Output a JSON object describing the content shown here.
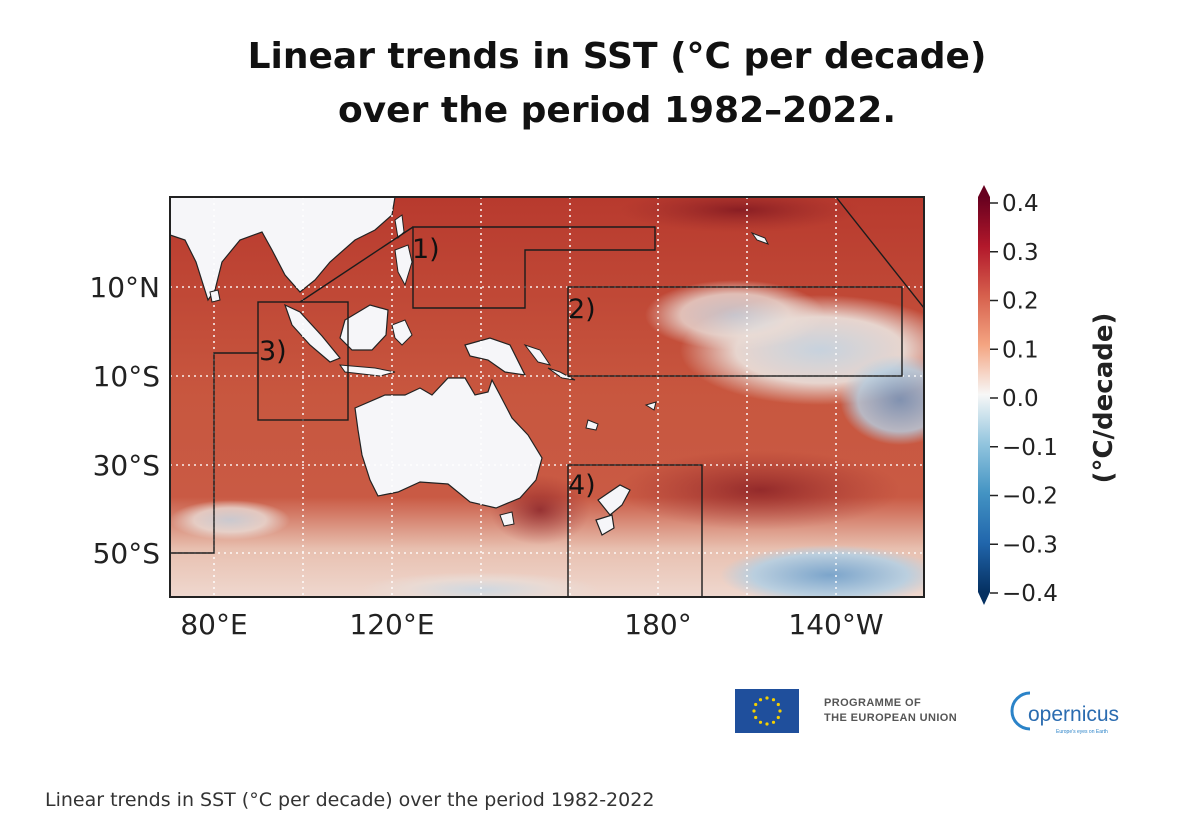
{
  "figure": {
    "title_line1": "Linear trends in SST (°C per decade)",
    "title_line2": "over the period 1982–2022."
  },
  "map": {
    "lat_labels": [
      "10°N",
      "10°S",
      "30°S",
      "50°S"
    ],
    "lon_labels": [
      "80°E",
      "120°E",
      "180°",
      "140°W"
    ],
    "regions": [
      "1)",
      "2)",
      "3)",
      "4)"
    ]
  },
  "colorbar": {
    "label": "(°C/decade)",
    "ticks": [
      "0.4",
      "0.3",
      "0.2",
      "0.1",
      "0.0",
      "−0.1",
      "−0.2",
      "−0.3",
      "−0.4"
    ],
    "colors": [
      "#67001f",
      "#b2182b",
      "#d6604d",
      "#f4a582",
      "#f7f7f7",
      "#92c5de",
      "#4393c3",
      "#2166ac",
      "#053061"
    ]
  },
  "footer": {
    "eu_line1": "PROGRAMME OF",
    "eu_line2": "THE EUROPEAN UNION",
    "copernicus": "opernicus",
    "copernicus_tagline": "Europe's eyes on Earth"
  },
  "caption": "Linear trends in SST (°C per decade) over the period 1982-2022"
}
